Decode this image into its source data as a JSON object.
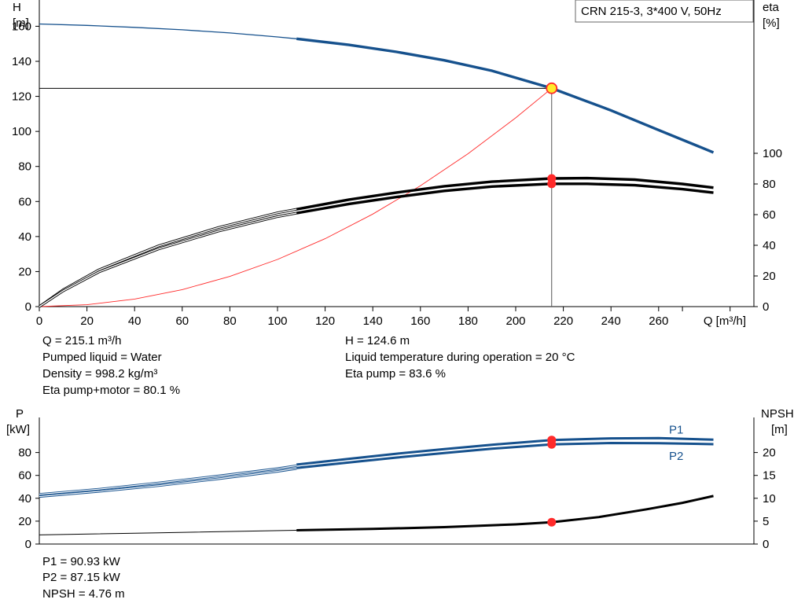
{
  "colors": {
    "blue": "#16518d",
    "black": "#000000",
    "red": "#ff2a2a",
    "op_yellow": "#ffea2a",
    "grid": "#000000"
  },
  "chart_data": [
    {
      "id": "head_eta_chart",
      "type": "line",
      "title": "CRN 215-3, 3*400 V, 50Hz",
      "x_label": "Q [m³/h]",
      "left_axis": {
        "name": "H",
        "unit": "[m]",
        "ylim": [
          0,
          175
        ]
      },
      "right_axis": {
        "name": "eta",
        "unit": "[%]",
        "ylim": [
          0,
          100
        ],
        "visible_max": 100
      },
      "xlim": [
        0,
        300
      ],
      "x_ticks": [
        "0",
        "20",
        "40",
        "60",
        "80",
        "100",
        "120",
        "140",
        "160",
        "180",
        "200",
        "220",
        "240",
        "260"
      ],
      "left_ticks": [
        "0",
        "20",
        "40",
        "60",
        "80",
        "100",
        "120",
        "140",
        "160"
      ],
      "right_ticks": [
        "0",
        "20",
        "40",
        "60",
        "80",
        "100"
      ],
      "series": [
        {
          "key": "head",
          "axis": "left",
          "color": "blue",
          "thin_x": [
            0,
            20,
            40,
            60,
            80,
            100,
            108
          ],
          "thin_y": [
            161.3,
            160.5,
            159.4,
            158.0,
            156.2,
            153.9,
            152.9
          ],
          "thick_x": [
            108,
            130,
            150,
            170,
            190,
            215.1,
            240,
            260,
            283
          ],
          "thick_y": [
            152.9,
            149.4,
            145.4,
            140.6,
            134.6,
            124.6,
            112.0,
            100.8,
            88.0
          ]
        },
        {
          "key": "eta_pump",
          "axis": "right",
          "color": "black",
          "thin_x": [
            0,
            10,
            25,
            50,
            75,
            100,
            108
          ],
          "thin_y": [
            0.0,
            11.0,
            24.0,
            39.6,
            51.5,
            61.2,
            63.5
          ],
          "thick_x": [
            108,
            130,
            150,
            170,
            190,
            215.1,
            230,
            250,
            270,
            283
          ],
          "thick_y": [
            63.5,
            69.8,
            74.4,
            78.5,
            81.5,
            83.6,
            83.8,
            82.8,
            80.0,
            77.6
          ]
        },
        {
          "key": "eta_total",
          "axis": "right",
          "color": "black",
          "thin_x": [
            0,
            10,
            25,
            50,
            75,
            100,
            108
          ],
          "thin_y": [
            0.0,
            10.2,
            22.6,
            37.6,
            49.2,
            58.7,
            61.0
          ],
          "thick_x": [
            108,
            130,
            150,
            170,
            190,
            215.1,
            230,
            250,
            270,
            283
          ],
          "thick_y": [
            61.0,
            67.0,
            71.5,
            75.5,
            78.3,
            80.1,
            80.1,
            79.2,
            76.6,
            74.3
          ]
        }
      ],
      "system_curve": {
        "color": "red",
        "x": [
          0,
          20,
          40,
          60,
          80,
          100,
          120,
          140,
          160,
          180,
          200,
          215.1
        ],
        "y": [
          0,
          1.08,
          4.31,
          9.7,
          17.24,
          26.94,
          38.79,
          52.8,
          68.96,
          87.28,
          107.75,
          124.6
        ]
      },
      "operating_point": {
        "q": 215.1,
        "h": 124.6,
        "eta_pump": 83.6,
        "eta_total": 80.1
      }
    },
    {
      "id": "power_npsh_chart",
      "type": "line",
      "left_axis": {
        "name": "P",
        "unit": "[kW]",
        "ylim": [
          0,
          100
        ]
      },
      "right_axis": {
        "name": "NPSH",
        "unit": "[m]",
        "ylim": [
          0,
          25
        ]
      },
      "xlim": [
        0,
        300
      ],
      "left_ticks": [
        "0",
        "20",
        "40",
        "60",
        "80"
      ],
      "right_ticks": [
        "0",
        "5",
        "10",
        "15",
        "20"
      ],
      "series": [
        {
          "key": "p1",
          "name": "P1",
          "axis": "left",
          "color": "blue",
          "thin_x": [
            0,
            25,
            50,
            75,
            100,
            108
          ],
          "thin_y": [
            43.5,
            48.0,
            53.5,
            59.5,
            66.0,
            68.5
          ],
          "thick_x": [
            108,
            130,
            150,
            170,
            190,
            215.1,
            240,
            260,
            283
          ],
          "thick_y": [
            69.5,
            74.5,
            79.0,
            83.0,
            86.8,
            90.93,
            92.4,
            92.6,
            91.2
          ]
        },
        {
          "key": "p2",
          "name": "P2",
          "axis": "left",
          "color": "blue",
          "thin_x": [
            0,
            25,
            50,
            75,
            100,
            108
          ],
          "thin_y": [
            41.5,
            46.0,
            51.0,
            57.0,
            63.5,
            66.0
          ],
          "thick_x": [
            108,
            130,
            150,
            170,
            190,
            215.1,
            240,
            260,
            283
          ],
          "thick_y": [
            66.5,
            71.3,
            75.6,
            79.6,
            83.3,
            87.15,
            88.3,
            88.2,
            87.3
          ]
        },
        {
          "key": "npsh",
          "axis": "right",
          "color": "black",
          "thin_x": [
            0,
            50,
            108
          ],
          "thin_y": [
            2.0,
            2.45,
            3.0
          ],
          "thick_x": [
            108,
            140,
            170,
            200,
            215.1,
            235,
            255,
            270,
            283
          ],
          "thick_y": [
            3.0,
            3.3,
            3.7,
            4.3,
            4.76,
            5.9,
            7.6,
            9.0,
            10.5
          ]
        }
      ],
      "operating_point": {
        "q": 215.1,
        "p1": 90.93,
        "p2": 87.15,
        "npsh": 4.76
      }
    }
  ],
  "info": {
    "q": "Q = 215.1 m³/h",
    "h": "H = 124.6 m",
    "liquid": "Pumped liquid = Water",
    "temp": "Liquid temperature during operation = 20 °C",
    "density": "Density = 998.2 kg/m³",
    "eta_pump": "Eta pump = 83.6 %",
    "eta_total": "Eta pump+motor = 80.1 %",
    "p1": "P1 = 90.93 kW",
    "p2": "P2 = 87.15 kW",
    "npsh": "NPSH = 4.76 m"
  }
}
